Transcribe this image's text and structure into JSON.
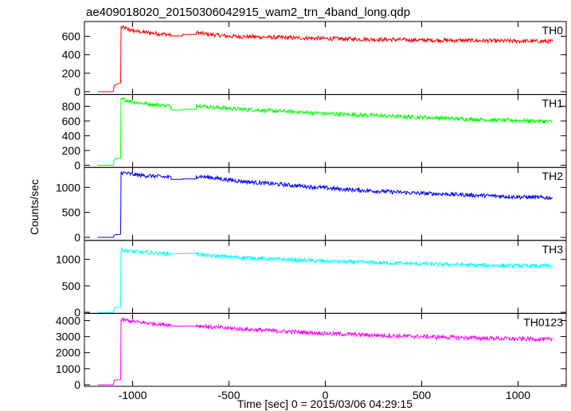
{
  "chart_data": {
    "type": "line",
    "title": "ae409018020_20150306042915_wam2_trn_4band_long.qdp",
    "xlabel": "Time [sec] 0 = 2015/03/06 04:29:15",
    "ylabel": "Counts/sec",
    "xlim": [
      -1250,
      1250
    ],
    "x_ticks": [
      -1000,
      -500,
      0,
      500,
      1000
    ],
    "grid": false,
    "panels": [
      {
        "name": "TH0",
        "color": "#ff0000",
        "ylim": [
          -30,
          760
        ],
        "y_ticks": [
          0,
          200,
          400,
          600
        ],
        "points": [
          [
            -1180,
            0
          ],
          [
            -1100,
            0
          ],
          [
            -1095,
            70
          ],
          [
            -1070,
            90
          ],
          [
            -1062,
            95
          ],
          [
            -1060,
            700
          ],
          [
            -1000,
            660
          ],
          [
            -950,
            645
          ],
          [
            -900,
            635
          ],
          [
            -850,
            625
          ],
          [
            -800,
            615
          ],
          [
            -800,
            605
          ],
          [
            -740,
            605
          ],
          [
            -740,
            620
          ],
          [
            -670,
            620
          ],
          [
            -670,
            640
          ],
          [
            -600,
            620
          ],
          [
            -500,
            600
          ],
          [
            -400,
            595
          ],
          [
            -300,
            590
          ],
          [
            -200,
            585
          ],
          [
            -100,
            580
          ],
          [
            0,
            575
          ],
          [
            100,
            572
          ],
          [
            200,
            568
          ],
          [
            300,
            565
          ],
          [
            400,
            562
          ],
          [
            500,
            558
          ],
          [
            600,
            556
          ],
          [
            700,
            555
          ],
          [
            800,
            552
          ],
          [
            900,
            550
          ],
          [
            1000,
            548
          ],
          [
            1100,
            546
          ],
          [
            1180,
            545
          ]
        ]
      },
      {
        "name": "TH1",
        "color": "#00ff00",
        "ylim": [
          -30,
          960
        ],
        "y_ticks": [
          0,
          200,
          400,
          600,
          800
        ],
        "points": [
          [
            -1180,
            0
          ],
          [
            -1100,
            0
          ],
          [
            -1095,
            80
          ],
          [
            -1070,
            95
          ],
          [
            -1062,
            100
          ],
          [
            -1060,
            900
          ],
          [
            -1000,
            860
          ],
          [
            -950,
            840
          ],
          [
            -900,
            825
          ],
          [
            -850,
            815
          ],
          [
            -800,
            800
          ],
          [
            -800,
            750
          ],
          [
            -740,
            750
          ],
          [
            -740,
            760
          ],
          [
            -670,
            760
          ],
          [
            -670,
            820
          ],
          [
            -600,
            790
          ],
          [
            -500,
            770
          ],
          [
            -400,
            755
          ],
          [
            -300,
            740
          ],
          [
            -200,
            730
          ],
          [
            -100,
            715
          ],
          [
            0,
            700
          ],
          [
            100,
            690
          ],
          [
            200,
            680
          ],
          [
            300,
            670
          ],
          [
            400,
            660
          ],
          [
            500,
            650
          ],
          [
            600,
            640
          ],
          [
            700,
            630
          ],
          [
            800,
            620
          ],
          [
            900,
            610
          ],
          [
            1000,
            605
          ],
          [
            1100,
            598
          ],
          [
            1180,
            590
          ]
        ]
      },
      {
        "name": "TH2",
        "color": "#0000ff",
        "ylim": [
          -60,
          1400
        ],
        "y_ticks": [
          0,
          500,
          1000
        ],
        "points": [
          [
            -1180,
            0
          ],
          [
            -1100,
            0
          ],
          [
            -1095,
            50
          ],
          [
            -1070,
            60
          ],
          [
            -1062,
            65
          ],
          [
            -1060,
            1300
          ],
          [
            -1000,
            1260
          ],
          [
            -950,
            1240
          ],
          [
            -900,
            1230
          ],
          [
            -850,
            1215
          ],
          [
            -800,
            1200
          ],
          [
            -800,
            1160
          ],
          [
            -740,
            1160
          ],
          [
            -740,
            1170
          ],
          [
            -670,
            1170
          ],
          [
            -670,
            1230
          ],
          [
            -600,
            1200
          ],
          [
            -500,
            1150
          ],
          [
            -400,
            1110
          ],
          [
            -300,
            1080
          ],
          [
            -200,
            1050
          ],
          [
            -100,
            1020
          ],
          [
            0,
            990
          ],
          [
            100,
            960
          ],
          [
            200,
            940
          ],
          [
            300,
            920
          ],
          [
            400,
            900
          ],
          [
            500,
            880
          ],
          [
            600,
            870
          ],
          [
            700,
            855
          ],
          [
            800,
            840
          ],
          [
            900,
            825
          ],
          [
            1000,
            810
          ],
          [
            1100,
            800
          ],
          [
            1180,
            790
          ]
        ]
      },
      {
        "name": "TH3",
        "color": "#00ffff",
        "ylim": [
          -20,
          1360
        ],
        "y_ticks": [
          0,
          500,
          1000
        ],
        "points": [
          [
            -1180,
            0
          ],
          [
            -1100,
            0
          ],
          [
            -1095,
            80
          ],
          [
            -1070,
            90
          ],
          [
            -1062,
            95
          ],
          [
            -1060,
            1180
          ],
          [
            -1000,
            1150
          ],
          [
            -950,
            1130
          ],
          [
            -900,
            1120
          ],
          [
            -850,
            1110
          ],
          [
            -800,
            1100
          ],
          [
            -800,
            1110
          ],
          [
            -740,
            1110
          ],
          [
            -740,
            1115
          ],
          [
            -670,
            1115
          ],
          [
            -670,
            1100
          ],
          [
            -600,
            1070
          ],
          [
            -500,
            1050
          ],
          [
            -400,
            1030
          ],
          [
            -300,
            1010
          ],
          [
            -200,
            995
          ],
          [
            -100,
            980
          ],
          [
            0,
            965
          ],
          [
            100,
            955
          ],
          [
            200,
            945
          ],
          [
            300,
            935
          ],
          [
            400,
            925
          ],
          [
            500,
            915
          ],
          [
            600,
            905
          ],
          [
            700,
            900
          ],
          [
            800,
            890
          ],
          [
            900,
            885
          ],
          [
            1000,
            880
          ],
          [
            1100,
            875
          ],
          [
            1180,
            870
          ]
        ]
      },
      {
        "name": "TH0123",
        "color": "#ff00ff",
        "ylim": [
          -100,
          4450
        ],
        "y_ticks": [
          0,
          1000,
          2000,
          3000,
          4000
        ],
        "points": [
          [
            -1180,
            0
          ],
          [
            -1100,
            0
          ],
          [
            -1095,
            280
          ],
          [
            -1070,
            300
          ],
          [
            -1062,
            310
          ],
          [
            -1060,
            4050
          ],
          [
            -1000,
            3950
          ],
          [
            -950,
            3880
          ],
          [
            -900,
            3820
          ],
          [
            -850,
            3770
          ],
          [
            -800,
            3730
          ],
          [
            -800,
            3650
          ],
          [
            -740,
            3650
          ],
          [
            -740,
            3660
          ],
          [
            -670,
            3660
          ],
          [
            -670,
            3700
          ],
          [
            -600,
            3600
          ],
          [
            -500,
            3520
          ],
          [
            -400,
            3450
          ],
          [
            -300,
            3380
          ],
          [
            -200,
            3320
          ],
          [
            -100,
            3260
          ],
          [
            0,
            3200
          ],
          [
            100,
            3150
          ],
          [
            200,
            3110
          ],
          [
            300,
            3070
          ],
          [
            400,
            3030
          ],
          [
            500,
            3000
          ],
          [
            600,
            2970
          ],
          [
            700,
            2940
          ],
          [
            800,
            2910
          ],
          [
            900,
            2880
          ],
          [
            1000,
            2860
          ],
          [
            1100,
            2840
          ],
          [
            1180,
            2820
          ]
        ]
      }
    ]
  }
}
